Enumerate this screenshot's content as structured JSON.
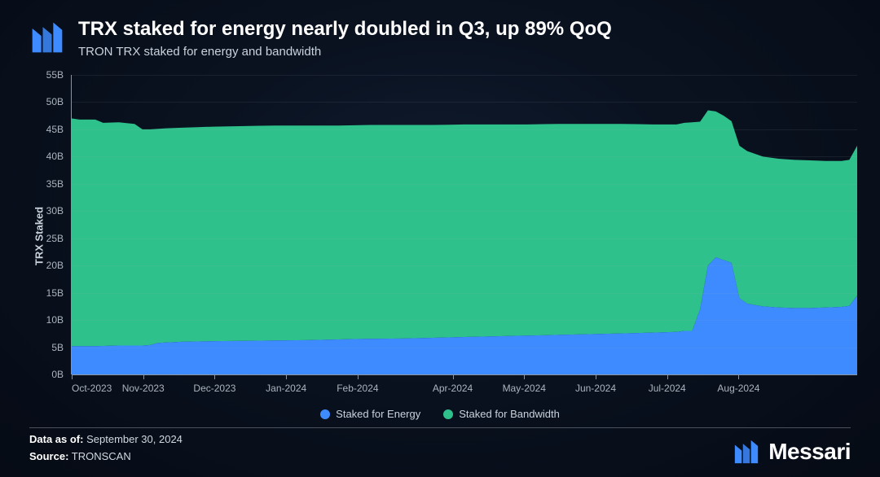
{
  "header": {
    "title": "TRX staked for energy nearly doubled in Q3, up 89% QoQ",
    "subtitle": "TRON TRX staked for energy and bandwidth"
  },
  "chart": {
    "type": "stacked-area",
    "y_label": "TRX Staked",
    "ylim": [
      0,
      55
    ],
    "yticks": [
      0,
      5,
      10,
      15,
      20,
      25,
      30,
      35,
      40,
      45,
      50,
      55
    ],
    "ytick_labels": [
      "0B",
      "5B",
      "10B",
      "15B",
      "20B",
      "25B",
      "30B",
      "35B",
      "40B",
      "45B",
      "50B",
      "55B"
    ],
    "xticks": [
      0,
      9.1,
      18.2,
      27.3,
      36.4,
      48.5,
      57.6,
      66.7,
      75.8,
      84.9
    ],
    "xtick_labels": [
      "Oct-2023",
      "Nov-2023",
      "Dec-2023",
      "Jan-2024",
      "Feb-2024",
      "Apr-2024",
      "May-2024",
      "Jun-2024",
      "Jul-2024",
      "Aug-2024"
    ],
    "grid_color": "rgba(170,180,190,0.10)",
    "axis_color": "#8a94a0",
    "tick_fontsize": 12,
    "label_fontsize": 13,
    "background": "transparent",
    "series": [
      {
        "name": "Staked for Energy",
        "color": "#3d8bff",
        "x": [
          0,
          3,
          6,
          9,
          10,
          11,
          14,
          18,
          24,
          30,
          36,
          42,
          48,
          54,
          60,
          66,
          72,
          77,
          78,
          79,
          80,
          81,
          82,
          83,
          84,
          85,
          86,
          88,
          90,
          92,
          94,
          96,
          98,
          99,
          100
        ],
        "y": [
          5.2,
          5.2,
          5.3,
          5.3,
          5.4,
          5.8,
          6.0,
          6.1,
          6.2,
          6.3,
          6.5,
          6.6,
          6.8,
          7.0,
          7.2,
          7.4,
          7.6,
          7.8,
          8.0,
          8.0,
          12.0,
          20.0,
          21.5,
          21.0,
          20.5,
          14.0,
          13.0,
          12.5,
          12.3,
          12.2,
          12.2,
          12.3,
          12.4,
          12.6,
          14.5
        ]
      },
      {
        "name": "Staked for Bandwidth",
        "color": "#2fc18c",
        "x": [
          0,
          1,
          2,
          3,
          4,
          6,
          8,
          9,
          10,
          11,
          12,
          14,
          16,
          18,
          22,
          26,
          30,
          34,
          38,
          42,
          46,
          50,
          54,
          58,
          62,
          66,
          70,
          74,
          77,
          78,
          79,
          80,
          81,
          82,
          83,
          84,
          85,
          86,
          88,
          90,
          92,
          94,
          96,
          98,
          99,
          100
        ],
        "y": [
          47.0,
          46.8,
          46.8,
          46.8,
          46.2,
          46.3,
          46.0,
          45.0,
          45.0,
          45.1,
          45.2,
          45.3,
          45.4,
          45.5,
          45.6,
          45.7,
          45.7,
          45.7,
          45.8,
          45.8,
          45.8,
          45.9,
          45.9,
          45.9,
          46.0,
          46.0,
          46.0,
          45.9,
          45.9,
          46.2,
          46.3,
          46.4,
          48.5,
          48.3,
          47.5,
          46.5,
          42.0,
          41.0,
          40.0,
          39.6,
          39.4,
          39.3,
          39.2,
          39.2,
          39.4,
          42.0
        ]
      }
    ],
    "legend": {
      "items": [
        {
          "label": "Staked for Energy",
          "color": "#3d8bff"
        },
        {
          "label": "Staked for Bandwidth",
          "color": "#2fc18c"
        }
      ]
    }
  },
  "footer": {
    "data_as_of_label": "Data as of:",
    "data_as_of_value": "September 30, 2024",
    "source_label": "Source:",
    "source_value": "TRONSCAN",
    "brand": "Messari"
  },
  "colors": {
    "title": "#ffffff",
    "subtitle": "#c8d2dc",
    "logo_accent": "#3d8bff"
  }
}
